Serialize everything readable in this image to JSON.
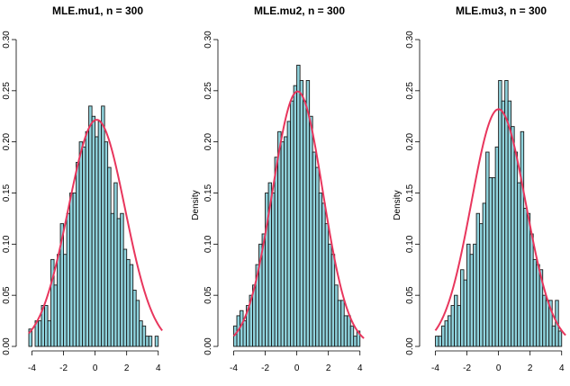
{
  "chart_data": [
    {
      "type": "histogram",
      "title": "MLE.mu1, n = 300",
      "ylabel": "",
      "xlim": [
        -4.2,
        4.3
      ],
      "ylim": [
        0,
        0.3
      ],
      "bin_width": 0.2,
      "bin_start": -4.2,
      "bar_color": "#8fd3dd",
      "curve_color": "#e8365d",
      "x_ticks": [
        "-4",
        "-2",
        "0",
        "2",
        "4"
      ],
      "y_ticks": [
        "0.00",
        "0.05",
        "0.10",
        "0.15",
        "0.20",
        "0.25",
        "0.30"
      ],
      "values": [
        0.017,
        0.0,
        0.025,
        0.025,
        0.04,
        0.04,
        0.025,
        0.085,
        0.06,
        0.09,
        0.12,
        0.09,
        0.13,
        0.15,
        0.15,
        0.18,
        0.2,
        0.195,
        0.21,
        0.235,
        0.225,
        0.205,
        0.22,
        0.235,
        0.2,
        0.175,
        0.13,
        0.16,
        0.125,
        0.13,
        0.095,
        0.085,
        0.08,
        0.055,
        0.045,
        0.025,
        0.02,
        0.01,
        0.01,
        0.0,
        0.01
      ],
      "curve": {
        "mean": 0.1,
        "sd": 1.8,
        "scale": 1.0
      }
    },
    {
      "type": "histogram",
      "title": "MLE.mu2, n = 300",
      "ylabel": "Density",
      "xlim": [
        -4.2,
        4.3
      ],
      "ylim": [
        0,
        0.3
      ],
      "bin_width": 0.2,
      "bin_start": -4.0,
      "bar_color": "#8fd3dd",
      "curve_color": "#e8365d",
      "x_ticks": [
        "-4",
        "-2",
        "0",
        "2",
        "4"
      ],
      "y_ticks": [
        "0.00",
        "0.05",
        "0.10",
        "0.15",
        "0.20",
        "0.25",
        "0.30"
      ],
      "values": [
        0.02,
        0.03,
        0.035,
        0.025,
        0.04,
        0.05,
        0.06,
        0.08,
        0.1,
        0.11,
        0.15,
        0.16,
        0.15,
        0.185,
        0.21,
        0.2,
        0.205,
        0.22,
        0.24,
        0.255,
        0.275,
        0.26,
        0.24,
        0.26,
        0.225,
        0.19,
        0.175,
        0.15,
        0.14,
        0.12,
        0.1,
        0.09,
        0.06,
        0.045,
        0.045,
        0.03,
        0.03,
        0.02,
        0.01,
        0.015
      ],
      "curve": {
        "mean": 0.05,
        "sd": 1.6,
        "scale": 1.0
      }
    },
    {
      "type": "histogram",
      "title": "MLE.mu3, n = 300",
      "ylabel": "Density",
      "xlim": [
        -4.2,
        4.3
      ],
      "ylim": [
        0,
        0.3
      ],
      "bin_width": 0.2,
      "bin_start": -4.0,
      "bar_color": "#8fd3dd",
      "curve_color": "#e8365d",
      "x_ticks": [
        "-4",
        "-2",
        "0",
        "2",
        "4"
      ],
      "y_ticks": [
        "0.00",
        "0.05",
        "0.10",
        "0.15",
        "0.20",
        "0.25",
        "0.30"
      ],
      "values": [
        0.01,
        0.01,
        0.02,
        0.025,
        0.03,
        0.04,
        0.05,
        0.04,
        0.075,
        0.065,
        0.1,
        0.09,
        0.1,
        0.13,
        0.12,
        0.14,
        0.19,
        0.165,
        0.165,
        0.195,
        0.26,
        0.24,
        0.26,
        0.24,
        0.215,
        0.19,
        0.16,
        0.21,
        0.135,
        0.13,
        0.11,
        0.085,
        0.08,
        0.075,
        0.05,
        0.045,
        0.045,
        0.02,
        0.045,
        0.015
      ],
      "curve": {
        "mean": 0.0,
        "sd": 1.72,
        "scale": 1.0
      }
    }
  ]
}
